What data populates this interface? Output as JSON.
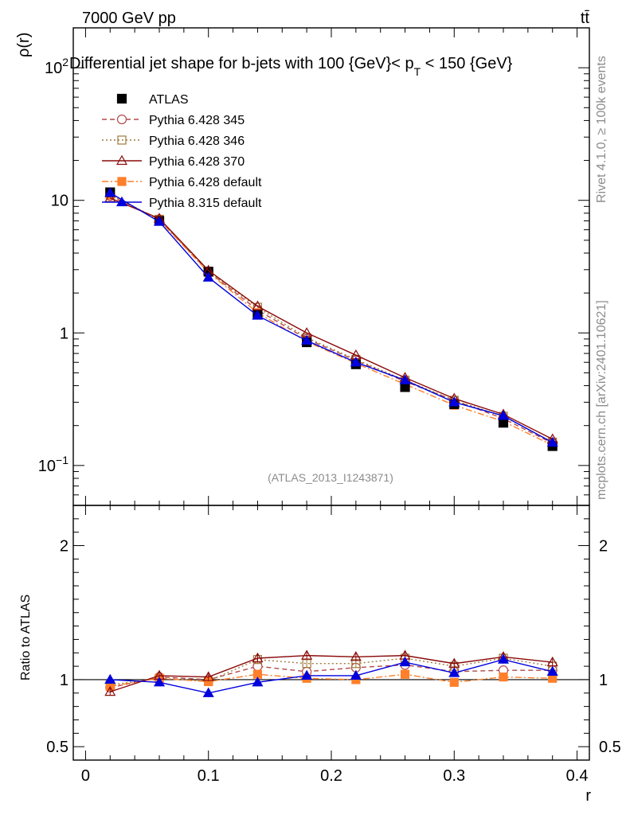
{
  "header": {
    "energy_label": "7000 GeV pp",
    "process_label": "tt̄",
    "rivet_label": "Rivet 4.1.0, ≥ 100k events",
    "mcplots_label": "mcplots.cern.ch [arXiv:2401.10621]",
    "analysis_id": "(ATLAS_2013_I1243871)"
  },
  "colors": {
    "atlas": "#000000",
    "pythia6_345": "#b24a4a",
    "pythia6_346": "#9c7a3c",
    "pythia6_370": "#8b0a0a",
    "pythia6_default": "#ff7f2a",
    "pythia8_default": "#0000dd"
  },
  "chart_data": [
    {
      "id": "main",
      "type": "line",
      "title": "Differential jet shape for b-jets with 100 {GeV}< p_T < 150 {GeV}",
      "title_main": "Differential jet shape for b-jets with 100 {GeV}< p",
      "title_sub": "T",
      "title_tail": " < 150 {GeV}",
      "ylabel": "ρ(r)",
      "xlabel": "",
      "yscale": "log",
      "ylim": [
        0.05,
        200
      ],
      "xlim": [
        -0.01,
        0.41
      ],
      "ytick_values": [
        0.1,
        1,
        10,
        100
      ],
      "ytick_labels": [
        "10^-1",
        "1",
        "10",
        "10^2"
      ],
      "x": [
        0.02,
        0.06,
        0.1,
        0.14,
        0.18,
        0.22,
        0.26,
        0.3,
        0.34,
        0.38
      ],
      "series": [
        {
          "key": "atlas",
          "name": "ATLAS",
          "style": "points",
          "values": [
            11.5,
            7.0,
            2.9,
            1.38,
            0.85,
            0.58,
            0.39,
            0.29,
            0.21,
            0.14
          ]
        },
        {
          "key": "pythia6_345",
          "name": "Pythia 6.428 345",
          "style": "dashed-circle",
          "values": [
            10.8,
            7.2,
            2.9,
            1.49,
            0.9,
            0.62,
            0.43,
            0.31,
            0.226,
            0.147
          ]
        },
        {
          "key": "pythia6_346",
          "name": "Pythia 6.428 346",
          "style": "dotted-square",
          "values": [
            11.0,
            7.2,
            2.9,
            1.56,
            0.92,
            0.63,
            0.44,
            0.31,
            0.235,
            0.15
          ]
        },
        {
          "key": "pythia6_370",
          "name": "Pythia 6.428 370",
          "style": "solid-triangle",
          "values": [
            10.4,
            7.3,
            2.96,
            1.59,
            1.0,
            0.68,
            0.46,
            0.32,
            0.243,
            0.158
          ]
        },
        {
          "key": "pythia6_default",
          "name": "Pythia 6.428 default",
          "style": "dashdot-filled-square",
          "values": [
            11.0,
            7.1,
            2.86,
            1.42,
            0.86,
            0.59,
            0.41,
            0.285,
            0.215,
            0.142
          ]
        },
        {
          "key": "pythia8_default",
          "name": "Pythia 8.315 default",
          "style": "solid-filled-triangle",
          "values": [
            11.4,
            6.9,
            2.62,
            1.35,
            0.875,
            0.6,
            0.44,
            0.3,
            0.237,
            0.149
          ]
        }
      ]
    },
    {
      "id": "ratio",
      "type": "line",
      "ylabel": "Ratio to ATLAS",
      "xlabel": "r",
      "ylim": [
        0.4,
        2.3
      ],
      "xlim": [
        -0.01,
        0.41
      ],
      "ytick_values": [
        0.5,
        1,
        2
      ],
      "ytick_labels": [
        "0.5",
        "1",
        "2"
      ],
      "xtick_values": [
        0,
        0.1,
        0.2,
        0.3,
        0.4
      ],
      "xtick_labels": [
        "0",
        "0.1",
        "0.2",
        "0.3",
        "0.4"
      ],
      "x": [
        0.02,
        0.06,
        0.1,
        0.14,
        0.18,
        0.22,
        0.26,
        0.3,
        0.34,
        0.38
      ],
      "series": [
        {
          "key": "pythia6_345",
          "name": "Pythia 6.428 345",
          "style": "dashed-circle",
          "values": [
            0.94,
            1.02,
            1.0,
            1.1,
            1.06,
            1.09,
            1.11,
            1.06,
            1.07,
            1.07
          ]
        },
        {
          "key": "pythia6_346",
          "name": "Pythia 6.428 346",
          "style": "dotted-square",
          "values": [
            0.96,
            1.01,
            0.99,
            1.15,
            1.12,
            1.12,
            1.16,
            1.1,
            1.16,
            1.1
          ]
        },
        {
          "key": "pythia6_370",
          "name": "Pythia 6.428 370",
          "style": "solid-triangle",
          "values": [
            0.91,
            1.03,
            1.02,
            1.16,
            1.18,
            1.17,
            1.18,
            1.12,
            1.17,
            1.13
          ]
        },
        {
          "key": "pythia6_default",
          "name": "Pythia 6.428 default",
          "style": "dashdot-filled-square",
          "values": [
            0.95,
            1.01,
            0.985,
            1.04,
            1.01,
            1.0,
            1.04,
            0.98,
            1.02,
            1.01
          ]
        },
        {
          "key": "pythia8_default",
          "name": "Pythia 8.315 default",
          "style": "solid-filled-triangle",
          "values": [
            1.0,
            0.98,
            0.9,
            0.98,
            1.03,
            1.03,
            1.13,
            1.05,
            1.15,
            1.06
          ]
        }
      ]
    }
  ]
}
